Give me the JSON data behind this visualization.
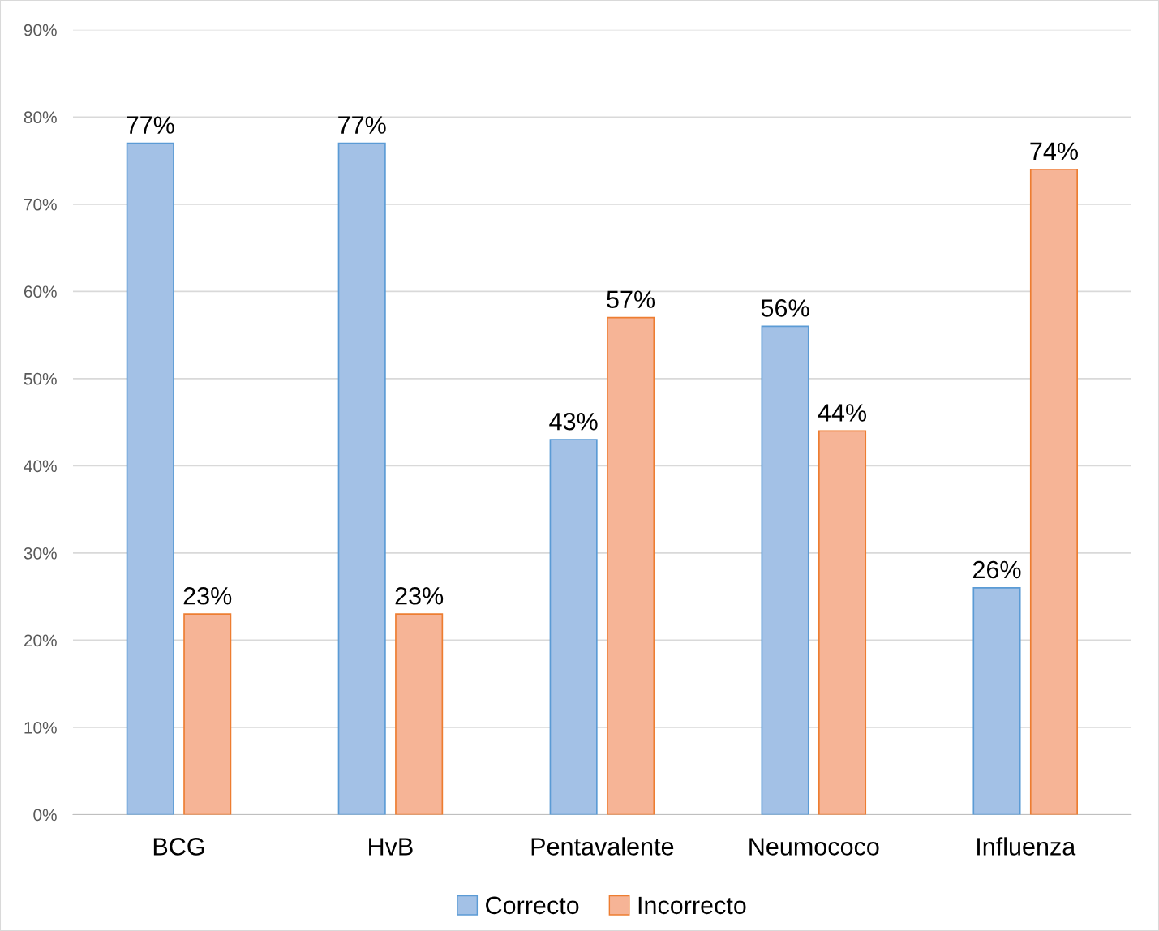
{
  "chart_data": {
    "type": "bar",
    "categories": [
      "BCG",
      "HvB",
      "Pentavalente",
      "Neumococo",
      "Influenza"
    ],
    "series": [
      {
        "name": "Correcto",
        "color": "#a3c1e6",
        "values": [
          77,
          77,
          43,
          56,
          26
        ],
        "value_labels": [
          "77%",
          "77%",
          "43%",
          "56%",
          "26%"
        ]
      },
      {
        "name": "Incorrecto",
        "color": "#f6b496",
        "values": [
          23,
          23,
          57,
          44,
          74
        ],
        "value_labels": [
          "23%",
          "23%",
          "57%",
          "44%",
          "74%"
        ]
      }
    ],
    "ylim": [
      0,
      90
    ],
    "yticks": [
      {
        "value": 0,
        "label": "0%"
      },
      {
        "value": 10,
        "label": "10%"
      },
      {
        "value": 20,
        "label": "20%"
      },
      {
        "value": 30,
        "label": "30%"
      },
      {
        "value": 40,
        "label": "40%"
      },
      {
        "value": 50,
        "label": "50%"
      },
      {
        "value": 60,
        "label": "60%"
      },
      {
        "value": 70,
        "label": "70%"
      },
      {
        "value": 80,
        "label": "80%"
      },
      {
        "value": 90,
        "label": "90%"
      }
    ],
    "grid": "y",
    "legend": "bottom"
  }
}
